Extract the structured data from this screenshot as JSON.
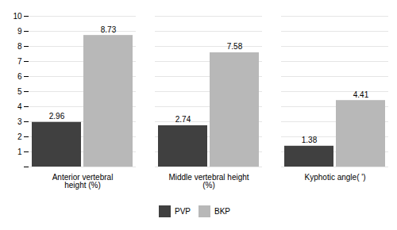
{
  "chart_data": {
    "type": "bar",
    "categories": [
      "Anterior vertebral\nheight (%)",
      "Middle vertebral height\n(%)",
      "Kyphotic angle( ')"
    ],
    "series": [
      {
        "name": "PVP",
        "color": "#404040",
        "values": [
          2.96,
          2.74,
          1.38
        ]
      },
      {
        "name": "BKP",
        "color": "#b8b8b8",
        "values": [
          8.73,
          7.58,
          4.41
        ]
      }
    ],
    "ylim": [
      0,
      10
    ],
    "yticks": [
      {
        "value": 0,
        "label": null
      },
      1,
      2,
      3,
      4,
      5,
      6,
      7,
      8,
      9,
      10
    ],
    "grid": true,
    "data_labels": true,
    "legend": "bottom"
  }
}
